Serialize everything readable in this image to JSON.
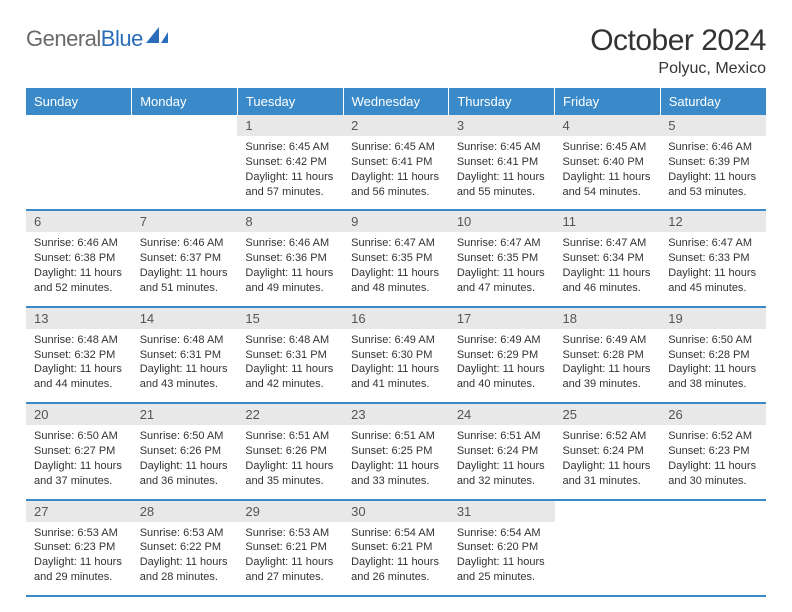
{
  "brand": {
    "word1": "General",
    "word2": "Blue"
  },
  "title": "October 2024",
  "location": "Polyuc, Mexico",
  "colors": {
    "header_bg": "#3a8ac9",
    "header_text": "#ffffff",
    "daynum_bg": "#e8e8e8",
    "rule": "#3a8ac9",
    "logo_gray": "#6a6a6a",
    "logo_blue": "#2a6db8"
  },
  "weekdays": [
    "Sunday",
    "Monday",
    "Tuesday",
    "Wednesday",
    "Thursday",
    "Friday",
    "Saturday"
  ],
  "weeks": [
    [
      null,
      null,
      {
        "n": "1",
        "sr": "Sunrise: 6:45 AM",
        "ss": "Sunset: 6:42 PM",
        "dl": "Daylight: 11 hours and 57 minutes."
      },
      {
        "n": "2",
        "sr": "Sunrise: 6:45 AM",
        "ss": "Sunset: 6:41 PM",
        "dl": "Daylight: 11 hours and 56 minutes."
      },
      {
        "n": "3",
        "sr": "Sunrise: 6:45 AM",
        "ss": "Sunset: 6:41 PM",
        "dl": "Daylight: 11 hours and 55 minutes."
      },
      {
        "n": "4",
        "sr": "Sunrise: 6:45 AM",
        "ss": "Sunset: 6:40 PM",
        "dl": "Daylight: 11 hours and 54 minutes."
      },
      {
        "n": "5",
        "sr": "Sunrise: 6:46 AM",
        "ss": "Sunset: 6:39 PM",
        "dl": "Daylight: 11 hours and 53 minutes."
      }
    ],
    [
      {
        "n": "6",
        "sr": "Sunrise: 6:46 AM",
        "ss": "Sunset: 6:38 PM",
        "dl": "Daylight: 11 hours and 52 minutes."
      },
      {
        "n": "7",
        "sr": "Sunrise: 6:46 AM",
        "ss": "Sunset: 6:37 PM",
        "dl": "Daylight: 11 hours and 51 minutes."
      },
      {
        "n": "8",
        "sr": "Sunrise: 6:46 AM",
        "ss": "Sunset: 6:36 PM",
        "dl": "Daylight: 11 hours and 49 minutes."
      },
      {
        "n": "9",
        "sr": "Sunrise: 6:47 AM",
        "ss": "Sunset: 6:35 PM",
        "dl": "Daylight: 11 hours and 48 minutes."
      },
      {
        "n": "10",
        "sr": "Sunrise: 6:47 AM",
        "ss": "Sunset: 6:35 PM",
        "dl": "Daylight: 11 hours and 47 minutes."
      },
      {
        "n": "11",
        "sr": "Sunrise: 6:47 AM",
        "ss": "Sunset: 6:34 PM",
        "dl": "Daylight: 11 hours and 46 minutes."
      },
      {
        "n": "12",
        "sr": "Sunrise: 6:47 AM",
        "ss": "Sunset: 6:33 PM",
        "dl": "Daylight: 11 hours and 45 minutes."
      }
    ],
    [
      {
        "n": "13",
        "sr": "Sunrise: 6:48 AM",
        "ss": "Sunset: 6:32 PM",
        "dl": "Daylight: 11 hours and 44 minutes."
      },
      {
        "n": "14",
        "sr": "Sunrise: 6:48 AM",
        "ss": "Sunset: 6:31 PM",
        "dl": "Daylight: 11 hours and 43 minutes."
      },
      {
        "n": "15",
        "sr": "Sunrise: 6:48 AM",
        "ss": "Sunset: 6:31 PM",
        "dl": "Daylight: 11 hours and 42 minutes."
      },
      {
        "n": "16",
        "sr": "Sunrise: 6:49 AM",
        "ss": "Sunset: 6:30 PM",
        "dl": "Daylight: 11 hours and 41 minutes."
      },
      {
        "n": "17",
        "sr": "Sunrise: 6:49 AM",
        "ss": "Sunset: 6:29 PM",
        "dl": "Daylight: 11 hours and 40 minutes."
      },
      {
        "n": "18",
        "sr": "Sunrise: 6:49 AM",
        "ss": "Sunset: 6:28 PM",
        "dl": "Daylight: 11 hours and 39 minutes."
      },
      {
        "n": "19",
        "sr": "Sunrise: 6:50 AM",
        "ss": "Sunset: 6:28 PM",
        "dl": "Daylight: 11 hours and 38 minutes."
      }
    ],
    [
      {
        "n": "20",
        "sr": "Sunrise: 6:50 AM",
        "ss": "Sunset: 6:27 PM",
        "dl": "Daylight: 11 hours and 37 minutes."
      },
      {
        "n": "21",
        "sr": "Sunrise: 6:50 AM",
        "ss": "Sunset: 6:26 PM",
        "dl": "Daylight: 11 hours and 36 minutes."
      },
      {
        "n": "22",
        "sr": "Sunrise: 6:51 AM",
        "ss": "Sunset: 6:26 PM",
        "dl": "Daylight: 11 hours and 35 minutes."
      },
      {
        "n": "23",
        "sr": "Sunrise: 6:51 AM",
        "ss": "Sunset: 6:25 PM",
        "dl": "Daylight: 11 hours and 33 minutes."
      },
      {
        "n": "24",
        "sr": "Sunrise: 6:51 AM",
        "ss": "Sunset: 6:24 PM",
        "dl": "Daylight: 11 hours and 32 minutes."
      },
      {
        "n": "25",
        "sr": "Sunrise: 6:52 AM",
        "ss": "Sunset: 6:24 PM",
        "dl": "Daylight: 11 hours and 31 minutes."
      },
      {
        "n": "26",
        "sr": "Sunrise: 6:52 AM",
        "ss": "Sunset: 6:23 PM",
        "dl": "Daylight: 11 hours and 30 minutes."
      }
    ],
    [
      {
        "n": "27",
        "sr": "Sunrise: 6:53 AM",
        "ss": "Sunset: 6:23 PM",
        "dl": "Daylight: 11 hours and 29 minutes."
      },
      {
        "n": "28",
        "sr": "Sunrise: 6:53 AM",
        "ss": "Sunset: 6:22 PM",
        "dl": "Daylight: 11 hours and 28 minutes."
      },
      {
        "n": "29",
        "sr": "Sunrise: 6:53 AM",
        "ss": "Sunset: 6:21 PM",
        "dl": "Daylight: 11 hours and 27 minutes."
      },
      {
        "n": "30",
        "sr": "Sunrise: 6:54 AM",
        "ss": "Sunset: 6:21 PM",
        "dl": "Daylight: 11 hours and 26 minutes."
      },
      {
        "n": "31",
        "sr": "Sunrise: 6:54 AM",
        "ss": "Sunset: 6:20 PM",
        "dl": "Daylight: 11 hours and 25 minutes."
      },
      null,
      null
    ]
  ]
}
